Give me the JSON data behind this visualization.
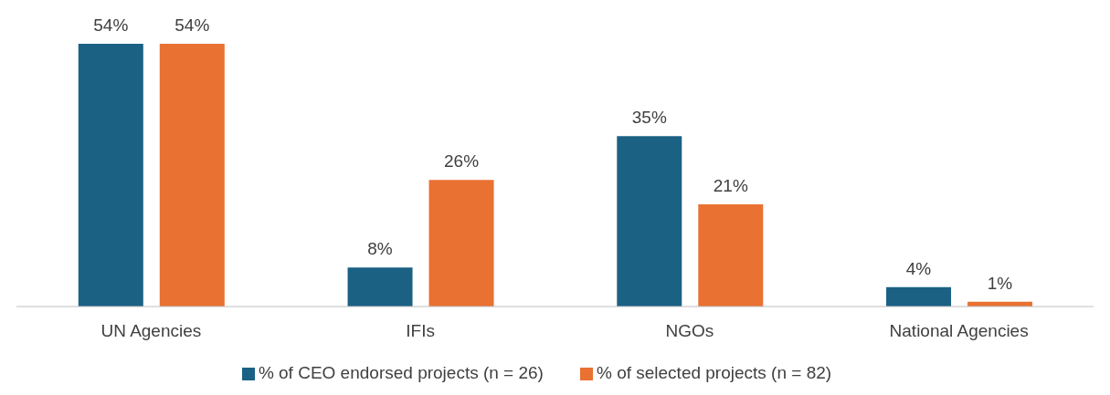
{
  "chart_data": {
    "type": "bar",
    "categories": [
      "UN Agencies",
      "IFIs",
      "NGOs",
      "National Agencies"
    ],
    "series": [
      {
        "name": "% of CEO endorsed projects (n = 26)",
        "color": "#1a6184",
        "values": [
          54,
          8,
          35,
          4
        ],
        "value_labels": [
          "54%",
          "8%",
          "35%",
          "4%"
        ]
      },
      {
        "name": "% of selected projects (n = 82)",
        "color": "#e97132",
        "values": [
          54,
          26,
          21,
          1
        ],
        "value_labels": [
          "54%",
          "26%",
          "21%",
          "1%"
        ]
      }
    ],
    "legend": "bottom",
    "grid": false
  }
}
